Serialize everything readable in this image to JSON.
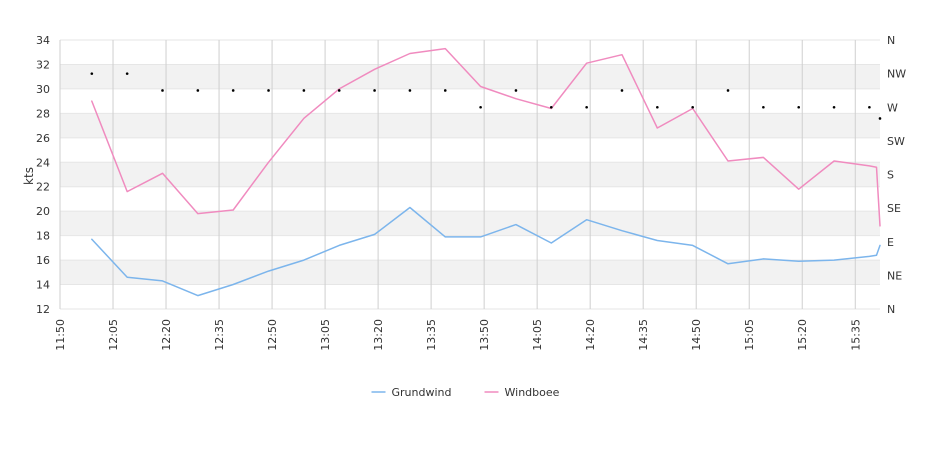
{
  "chart_data": {
    "type": "line",
    "ylabel": "kts",
    "ylim": [
      12,
      34
    ],
    "yticks": [
      12,
      14,
      16,
      18,
      20,
      22,
      24,
      26,
      28,
      30,
      32,
      34
    ],
    "xlim": [
      "11:50",
      "15:42"
    ],
    "xticks": [
      "11:50",
      "12:05",
      "12:20",
      "12:35",
      "12:50",
      "13:05",
      "13:20",
      "13:35",
      "13:50",
      "14:05",
      "14:20",
      "14:35",
      "14:50",
      "15:05",
      "15:20",
      "15:35"
    ],
    "direction_axis": {
      "labels": [
        "N",
        "NE",
        "E",
        "SE",
        "S",
        "SW",
        "W",
        "NW",
        "N"
      ],
      "range_degrees": [
        0,
        360
      ]
    },
    "grid": true,
    "legend_position": "bottom-center",
    "colors": {
      "Grundwind": "#7cb5ec",
      "Windboee": "#f08bbf",
      "direction": "#000000"
    },
    "x": [
      "11:59",
      "12:09",
      "12:19",
      "12:29",
      "12:39",
      "12:49",
      "12:59",
      "13:09",
      "13:19",
      "13:29",
      "13:39",
      "13:49",
      "13:59",
      "14:09",
      "14:19",
      "14:29",
      "14:39",
      "14:49",
      "14:59",
      "15:09",
      "15:19",
      "15:29",
      "15:39",
      "15:41",
      "15:42"
    ],
    "series": [
      {
        "name": "Grundwind",
        "values": [
          17.7,
          14.6,
          14.3,
          13.1,
          14.0,
          15.1,
          16.0,
          17.2,
          18.1,
          20.3,
          17.9,
          17.9,
          18.9,
          17.4,
          19.3,
          18.4,
          17.6,
          17.2,
          15.7,
          16.1,
          15.9,
          16.0,
          16.3,
          16.4,
          17.2
        ]
      },
      {
        "name": "Windboee",
        "values": [
          29.0,
          21.6,
          23.1,
          19.8,
          20.1,
          24.0,
          27.6,
          30.0,
          31.6,
          32.9,
          33.3,
          30.2,
          29.2,
          28.4,
          32.1,
          32.8,
          26.8,
          28.4,
          24.1,
          24.4,
          21.8,
          24.1,
          23.7,
          23.6,
          18.8
        ]
      }
    ],
    "direction_points": {
      "x": [
        "11:59",
        "12:09",
        "12:19",
        "12:29",
        "12:39",
        "12:49",
        "12:59",
        "13:09",
        "13:19",
        "13:29",
        "13:39",
        "13:49",
        "13:59",
        "14:09",
        "14:19",
        "14:29",
        "14:39",
        "14:49",
        "14:59",
        "15:09",
        "15:19",
        "15:29",
        "15:39",
        "15:42"
      ],
      "degrees": [
        315,
        315,
        292.5,
        292.5,
        292.5,
        292.5,
        292.5,
        292.5,
        292.5,
        292.5,
        292.5,
        270,
        292.5,
        270,
        270,
        292.5,
        270,
        270,
        292.5,
        270,
        270,
        270,
        270,
        255
      ]
    }
  }
}
